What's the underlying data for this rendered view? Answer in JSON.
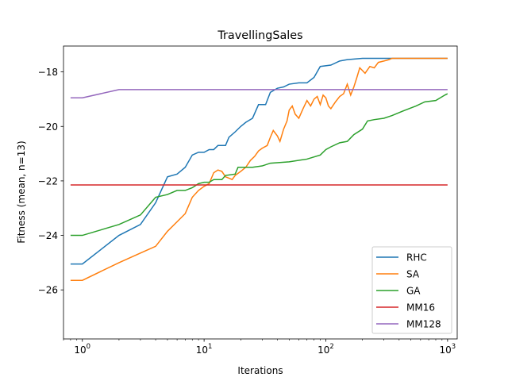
{
  "chart_data": {
    "type": "line",
    "title": "TravellingSales",
    "xlabel": "Iterations",
    "ylabel": "Fitness (mean, n=13)",
    "xscale": "log",
    "xlim": [
      0.7,
      1200
    ],
    "ylim": [
      -27.8,
      -17.05
    ],
    "x_ticks": [
      {
        "value": 1,
        "base": "10",
        "exp": "0"
      },
      {
        "value": 10,
        "base": "10",
        "exp": "1"
      },
      {
        "value": 100,
        "base": "10",
        "exp": "2"
      },
      {
        "value": 1000,
        "base": "10",
        "exp": "3"
      }
    ],
    "y_ticks": [
      {
        "value": -26,
        "label": "−26"
      },
      {
        "value": -24,
        "label": "−24"
      },
      {
        "value": -22,
        "label": "−22"
      },
      {
        "value": -20,
        "label": "−20"
      },
      {
        "value": -18,
        "label": "−18"
      }
    ],
    "grid": false,
    "legend_position": "lower right",
    "series": [
      {
        "name": "RHC",
        "color": "#1f77b4",
        "points": [
          [
            0.8,
            -25.05
          ],
          [
            1,
            -25.05
          ],
          [
            2,
            -24.0
          ],
          [
            3,
            -23.6
          ],
          [
            4,
            -22.8
          ],
          [
            5,
            -21.85
          ],
          [
            6,
            -21.75
          ],
          [
            7,
            -21.5
          ],
          [
            8,
            -21.05
          ],
          [
            9,
            -20.95
          ],
          [
            10,
            -20.95
          ],
          [
            11,
            -20.85
          ],
          [
            12,
            -20.85
          ],
          [
            13,
            -20.7
          ],
          [
            15,
            -20.7
          ],
          [
            16,
            -20.4
          ],
          [
            18,
            -20.2
          ],
          [
            20,
            -20.0
          ],
          [
            22,
            -19.85
          ],
          [
            25,
            -19.7
          ],
          [
            28,
            -19.2
          ],
          [
            32,
            -19.2
          ],
          [
            35,
            -18.75
          ],
          [
            40,
            -18.6
          ],
          [
            45,
            -18.55
          ],
          [
            50,
            -18.45
          ],
          [
            60,
            -18.4
          ],
          [
            70,
            -18.4
          ],
          [
            80,
            -18.2
          ],
          [
            90,
            -17.8
          ],
          [
            110,
            -17.75
          ],
          [
            130,
            -17.6
          ],
          [
            150,
            -17.55
          ],
          [
            200,
            -17.5
          ],
          [
            300,
            -17.5
          ],
          [
            500,
            -17.5
          ],
          [
            1000,
            -17.5
          ]
        ]
      },
      {
        "name": "SA",
        "color": "#ff7f0e",
        "points": [
          [
            0.8,
            -25.65
          ],
          [
            1,
            -25.65
          ],
          [
            2,
            -25.0
          ],
          [
            3,
            -24.65
          ],
          [
            4,
            -24.4
          ],
          [
            5,
            -23.85
          ],
          [
            6,
            -23.5
          ],
          [
            7,
            -23.2
          ],
          [
            8,
            -22.6
          ],
          [
            9,
            -22.35
          ],
          [
            10,
            -22.2
          ],
          [
            11,
            -22.1
          ],
          [
            12,
            -21.7
          ],
          [
            13,
            -21.6
          ],
          [
            14,
            -21.65
          ],
          [
            15,
            -21.85
          ],
          [
            16,
            -21.9
          ],
          [
            17,
            -21.95
          ],
          [
            18,
            -21.8
          ],
          [
            20,
            -21.65
          ],
          [
            22,
            -21.5
          ],
          [
            24,
            -21.25
          ],
          [
            26,
            -21.1
          ],
          [
            28,
            -20.9
          ],
          [
            30,
            -20.8
          ],
          [
            33,
            -20.7
          ],
          [
            35,
            -20.4
          ],
          [
            37,
            -20.15
          ],
          [
            40,
            -20.35
          ],
          [
            42,
            -20.55
          ],
          [
            45,
            -20.1
          ],
          [
            48,
            -19.8
          ],
          [
            50,
            -19.4
          ],
          [
            53,
            -19.25
          ],
          [
            56,
            -19.55
          ],
          [
            60,
            -19.7
          ],
          [
            65,
            -19.35
          ],
          [
            70,
            -19.05
          ],
          [
            75,
            -19.25
          ],
          [
            80,
            -19.0
          ],
          [
            85,
            -18.9
          ],
          [
            90,
            -19.2
          ],
          [
            95,
            -18.85
          ],
          [
            100,
            -18.95
          ],
          [
            105,
            -19.25
          ],
          [
            110,
            -19.35
          ],
          [
            120,
            -19.1
          ],
          [
            130,
            -18.9
          ],
          [
            140,
            -18.8
          ],
          [
            150,
            -18.45
          ],
          [
            160,
            -18.85
          ],
          [
            170,
            -18.55
          ],
          [
            180,
            -18.2
          ],
          [
            190,
            -17.85
          ],
          [
            200,
            -17.95
          ],
          [
            210,
            -18.05
          ],
          [
            230,
            -17.8
          ],
          [
            250,
            -17.85
          ],
          [
            270,
            -17.65
          ],
          [
            300,
            -17.6
          ],
          [
            330,
            -17.55
          ],
          [
            350,
            -17.5
          ],
          [
            400,
            -17.5
          ],
          [
            1000,
            -17.5
          ]
        ]
      },
      {
        "name": "GA",
        "color": "#2ca02c",
        "points": [
          [
            0.8,
            -24.0
          ],
          [
            1,
            -24.0
          ],
          [
            2,
            -23.6
          ],
          [
            3,
            -23.25
          ],
          [
            4,
            -22.6
          ],
          [
            5,
            -22.5
          ],
          [
            6,
            -22.35
          ],
          [
            7,
            -22.35
          ],
          [
            8,
            -22.25
          ],
          [
            9,
            -22.1
          ],
          [
            10,
            -22.05
          ],
          [
            11,
            -22.05
          ],
          [
            12,
            -21.95
          ],
          [
            14,
            -21.95
          ],
          [
            15,
            -21.8
          ],
          [
            18,
            -21.75
          ],
          [
            19,
            -21.5
          ],
          [
            25,
            -21.5
          ],
          [
            30,
            -21.45
          ],
          [
            35,
            -21.35
          ],
          [
            50,
            -21.3
          ],
          [
            70,
            -21.2
          ],
          [
            90,
            -21.05
          ],
          [
            100,
            -20.85
          ],
          [
            110,
            -20.75
          ],
          [
            130,
            -20.6
          ],
          [
            150,
            -20.55
          ],
          [
            170,
            -20.3
          ],
          [
            200,
            -20.1
          ],
          [
            220,
            -19.8
          ],
          [
            250,
            -19.75
          ],
          [
            300,
            -19.7
          ],
          [
            350,
            -19.6
          ],
          [
            450,
            -19.4
          ],
          [
            550,
            -19.25
          ],
          [
            650,
            -19.1
          ],
          [
            800,
            -19.05
          ],
          [
            950,
            -18.85
          ],
          [
            1000,
            -18.8
          ]
        ]
      },
      {
        "name": "MM16",
        "color": "#d62728",
        "points": [
          [
            0.8,
            -22.15
          ],
          [
            1000,
            -22.15
          ]
        ]
      },
      {
        "name": "MM128",
        "color": "#9467bd",
        "points": [
          [
            0.8,
            -18.95
          ],
          [
            1,
            -18.95
          ],
          [
            2,
            -18.65
          ],
          [
            1000,
            -18.65
          ]
        ]
      }
    ]
  }
}
